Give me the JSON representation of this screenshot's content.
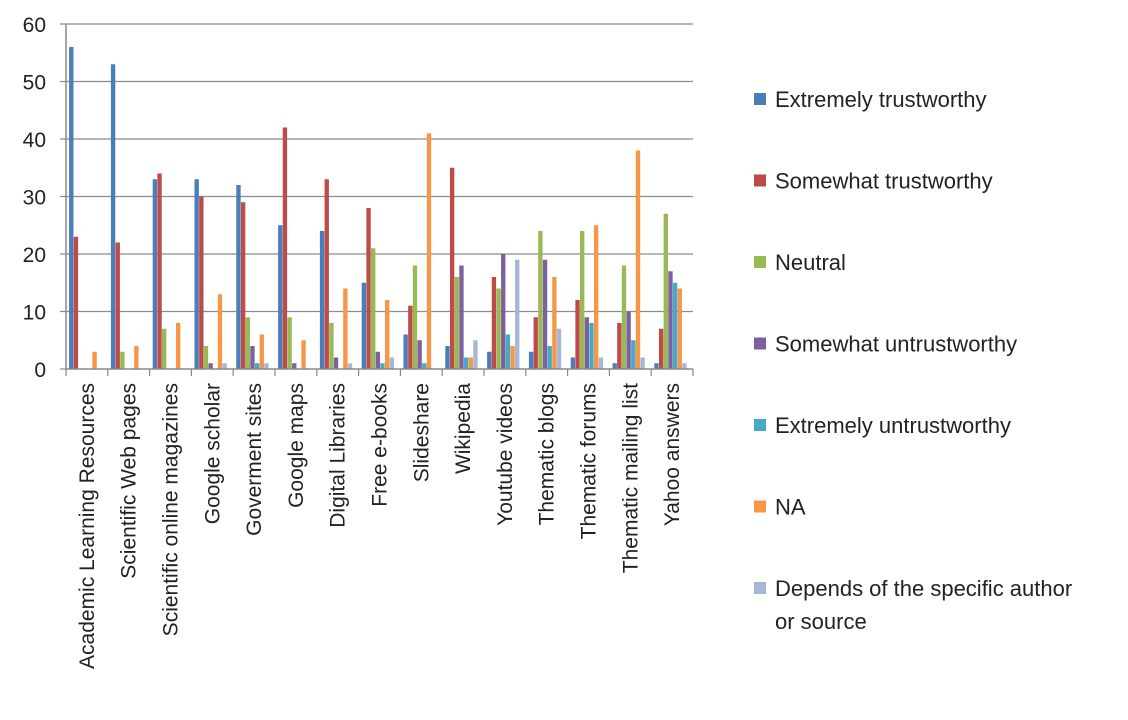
{
  "chart_data": {
    "type": "bar",
    "title": "",
    "xlabel": "",
    "ylabel": "",
    "ylim": [
      0,
      60
    ],
    "yticks": [
      0,
      10,
      20,
      30,
      40,
      50,
      60
    ],
    "grid": "horizontal",
    "legend_position": "right",
    "categories": [
      "Academic Learning Resources",
      "Scientific Web pages",
      "Scientific online magazines",
      "Google scholar",
      "Goverment sites",
      "Google maps",
      "Digital Libraries",
      "Free e-books",
      "Slideshare",
      "Wikipedia",
      "Youtube videos",
      "Thematic blogs",
      "Thematic forums",
      "Thematic mailing list",
      "Yahoo answers"
    ],
    "series": [
      {
        "name": "Extremely trustworthy",
        "color": "#4a7ebb",
        "values": [
          56,
          53,
          33,
          33,
          32,
          25,
          24,
          15,
          6,
          4,
          3,
          3,
          2,
          1,
          1
        ]
      },
      {
        "name": "Somewhat trustworthy",
        "color": "#be4b48",
        "values": [
          23,
          22,
          34,
          30,
          29,
          42,
          33,
          28,
          11,
          35,
          16,
          9,
          12,
          8,
          7
        ]
      },
      {
        "name": "Neutral",
        "color": "#98b954",
        "values": [
          0,
          3,
          7,
          4,
          9,
          9,
          8,
          21,
          18,
          16,
          14,
          24,
          24,
          18,
          27
        ]
      },
      {
        "name": "Somewhat untrustworthy",
        "color": "#7d60a0",
        "values": [
          0,
          0,
          0,
          1,
          4,
          1,
          2,
          3,
          5,
          18,
          20,
          19,
          9,
          10,
          17
        ]
      },
      {
        "name": "Extremely untrustworthy",
        "color": "#46aac5",
        "values": [
          0,
          0,
          0,
          0,
          1,
          0,
          0,
          1,
          1,
          2,
          6,
          4,
          8,
          5,
          15
        ]
      },
      {
        "name": "NA",
        "color": "#f79646",
        "values": [
          3,
          4,
          8,
          13,
          6,
          5,
          14,
          12,
          41,
          2,
          4,
          16,
          25,
          38,
          14
        ]
      },
      {
        "name": "Depends of the specific author or source",
        "color": "#a5b8d7",
        "values": [
          0,
          0,
          0,
          1,
          1,
          0,
          1,
          2,
          0,
          5,
          19,
          7,
          2,
          2,
          1
        ]
      }
    ],
    "legend_lines": {
      "Depends of the specific author or source": [
        "Depends of the specific author",
        "or source"
      ]
    }
  }
}
